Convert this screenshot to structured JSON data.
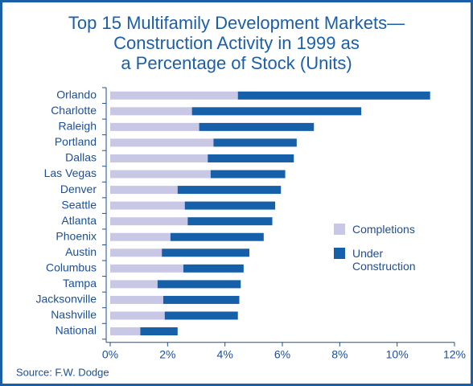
{
  "chart_data": {
    "type": "stacked-bar-horizontal",
    "title": [
      "Top 15 Multifamily Development Markets—",
      "Construction Activity in 1999 as",
      "a Percentage of Stock (Units)"
    ],
    "categories": [
      "Orlando",
      "Charlotte",
      "Raleigh",
      "Portland",
      "Dallas",
      "Las Vegas",
      "Denver",
      "Seattle",
      "Atlanta",
      "Phoenix",
      "Austin",
      "Columbus",
      "Tampa",
      "Jacksonville",
      "Nashville",
      "National"
    ],
    "series": [
      {
        "name": "Completions",
        "color": "#c8c8e6",
        "values": [
          4.45,
          2.85,
          3.1,
          3.6,
          3.4,
          3.5,
          2.35,
          2.6,
          2.7,
          2.1,
          1.8,
          2.55,
          1.65,
          1.85,
          1.9,
          1.05
        ]
      },
      {
        "name": "Under Construction",
        "color": "#1560a8",
        "values": [
          6.7,
          5.9,
          4.0,
          2.9,
          3.0,
          2.6,
          3.6,
          3.15,
          2.95,
          3.25,
          3.05,
          2.1,
          2.9,
          2.65,
          2.55,
          1.3
        ]
      }
    ],
    "xlim": [
      0,
      12
    ],
    "xticks": [
      {
        "value": 0,
        "label": "0%"
      },
      {
        "value": 2,
        "label": "2%"
      },
      {
        "value": 4,
        "label": "4%"
      },
      {
        "value": 6,
        "label": "6%"
      },
      {
        "value": 8,
        "label": "8%"
      },
      {
        "value": 10,
        "label": "10%"
      },
      {
        "value": 12,
        "label": "12%"
      }
    ],
    "source": "Source: F.W. Dodge"
  }
}
